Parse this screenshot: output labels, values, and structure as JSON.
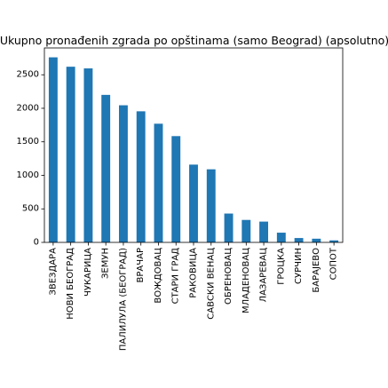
{
  "chart_data": {
    "type": "bar",
    "title": "Ukupno pronađenih zgrada po opštinama (samo Beograd) (apsolutno)",
    "xlabel": "",
    "ylabel": "",
    "categories": [
      "ЗВЕЗДАРА",
      "НОВИ БЕОГРАД",
      "ЧУКАРИЦА",
      "ЗЕМУН",
      "ПАЛИЛУЛА (БЕОГРАД)",
      "ВРАЧАР",
      "ВОЖДОВАЦ",
      "СТАРИ ГРАД",
      "РАКОВИЦА",
      "САВСКИ ВЕНАЦ",
      "ОБРЕНОВАЦ",
      "МЛАДЕНОВАЦ",
      "ЛАЗАРЕВАЦ",
      "ГРОЦКА",
      "СУРЧИН",
      "БАРАЈЕВО",
      "СОПОТ"
    ],
    "values": [
      2760,
      2620,
      2595,
      2200,
      2045,
      1955,
      1770,
      1585,
      1160,
      1090,
      430,
      335,
      310,
      145,
      65,
      55,
      30
    ],
    "ylim": [
      0,
      2900
    ],
    "yticks": [
      0,
      500,
      1000,
      1500,
      2000,
      2500
    ],
    "grid": false,
    "legend": "none",
    "bar_color": "#1f77b4"
  }
}
